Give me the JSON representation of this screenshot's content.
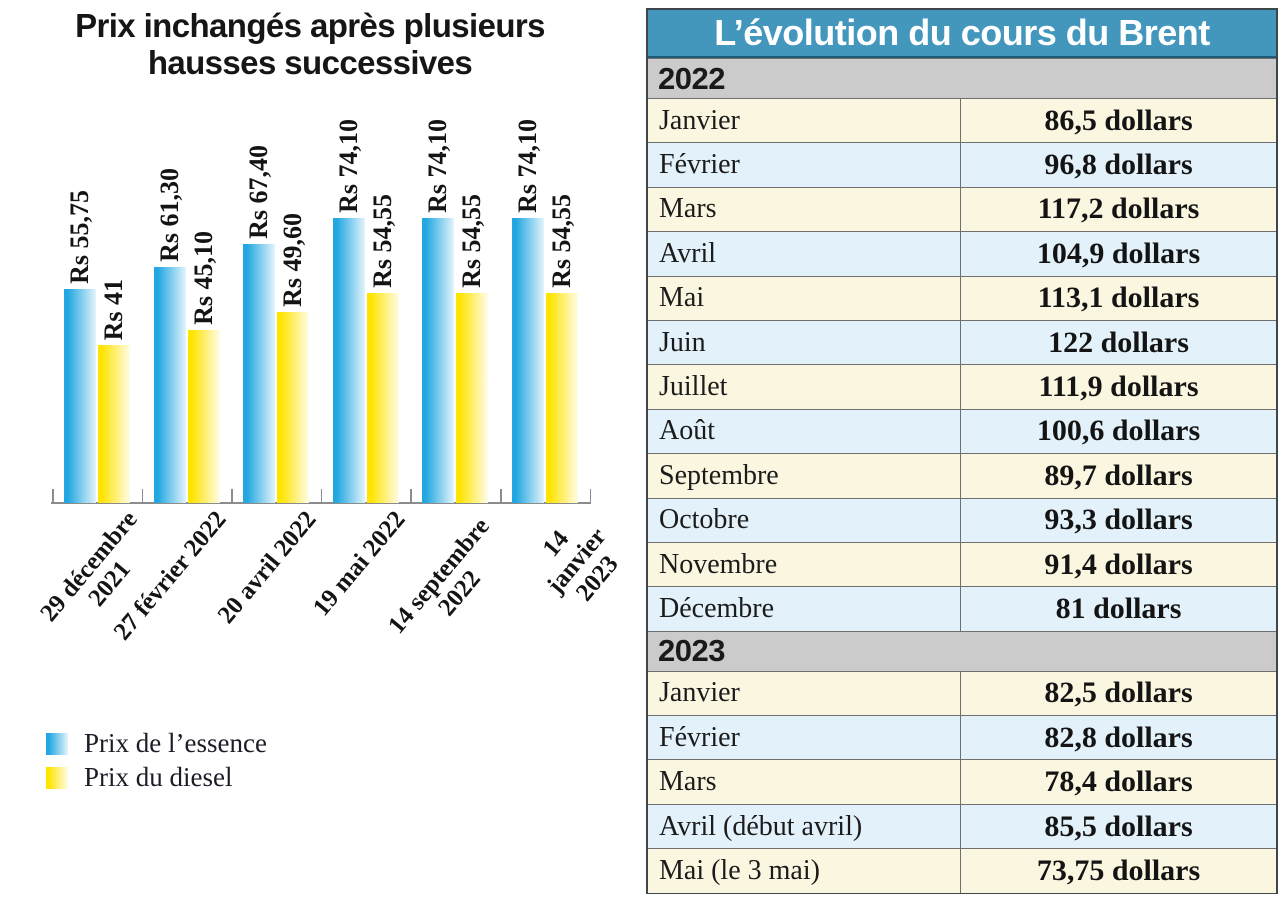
{
  "chart_data": {
    "type": "bar",
    "title": "Prix inchangés après plusieurs hausses successives",
    "categories": [
      "29 décembre\n2021",
      "27 février 2022",
      "20 avril 2022",
      "19 mai 2022",
      "14 septembre 2022",
      "14 janvier 2023"
    ],
    "series": [
      {
        "name": "Prix de l’essence",
        "values": [
          55.75,
          61.3,
          67.4,
          74.1,
          74.1,
          74.1
        ],
        "value_labels": [
          "Rs 55,75",
          "Rs 61,30",
          "Rs 67,40",
          "Rs 74,10",
          "Rs 74,10",
          "Rs 74,10"
        ],
        "color_start": "#22A7E0",
        "color_end": "#E3F4FC"
      },
      {
        "name": "Prix du diesel",
        "values": [
          41,
          45.1,
          49.6,
          54.55,
          54.55,
          54.55
        ],
        "value_labels": [
          "Rs 41",
          "Rs 45,10",
          "Rs 49,60",
          "Rs 54,55",
          "Rs 54,55",
          "Rs 54,55"
        ],
        "color_start": "#FFE400",
        "color_end": "#FFFCE8"
      }
    ],
    "xlabel": "",
    "ylabel": "",
    "ylim": [
      0,
      78
    ],
    "grid": false,
    "legend_position": "bottom-left",
    "value_unit": "Rs"
  },
  "table": {
    "title": "L’évolution du cours du Brent",
    "header_bg": "#4397BD",
    "section_bg": "#CBCBCB",
    "row_bg_odd": "#FBF6DF",
    "row_bg_even": "#E2F1FA",
    "unit": "dollars",
    "sections": [
      {
        "year": "2022",
        "rows": [
          {
            "label": "Janvier",
            "value": "86,5 dollars"
          },
          {
            "label": "Février",
            "value": "96,8 dollars"
          },
          {
            "label": "Mars",
            "value": "117,2 dollars"
          },
          {
            "label": "Avril",
            "value": "104,9 dollars"
          },
          {
            "label": "Mai",
            "value": "113,1 dollars"
          },
          {
            "label": "Juin",
            "value": "122 dollars"
          },
          {
            "label": "Juillet",
            "value": "111,9 dollars"
          },
          {
            "label": "Août",
            "value": "100,6 dollars"
          },
          {
            "label": "Septembre",
            "value": "89,7 dollars"
          },
          {
            "label": "Octobre",
            "value": "93,3 dollars"
          },
          {
            "label": "Novembre",
            "value": "91,4 dollars"
          },
          {
            "label": "Décembre",
            "value": "81 dollars"
          }
        ]
      },
      {
        "year": "2023",
        "rows": [
          {
            "label": "Janvier",
            "value": "82,5 dollars"
          },
          {
            "label": "Février",
            "value": "82,8 dollars"
          },
          {
            "label": "Mars",
            "value": "78,4 dollars"
          },
          {
            "label": "Avril (début avril)",
            "value": "85,5 dollars"
          },
          {
            "label": "Mai (le 3 mai)",
            "value": "73,75 dollars"
          }
        ]
      }
    ]
  }
}
